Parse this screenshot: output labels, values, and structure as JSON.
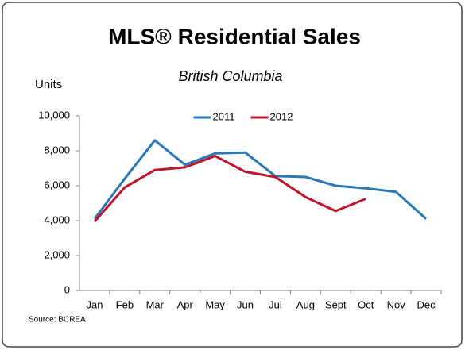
{
  "chart_data": {
    "type": "line",
    "title": "MLS® Residential Sales",
    "subtitle": "British Columbia",
    "y_label": "Units",
    "source": "Source: BCREA",
    "categories": [
      "Jan",
      "Feb",
      "Mar",
      "Apr",
      "May",
      "Jun",
      "Jul",
      "Aug",
      "Sept",
      "Oct",
      "Nov",
      "Dec"
    ],
    "series": [
      {
        "name": "2011",
        "color": "#2b78b8",
        "values": [
          4100,
          6400,
          8600,
          7200,
          7850,
          7900,
          6550,
          6500,
          6000,
          5850,
          5650,
          4100
        ]
      },
      {
        "name": "2012",
        "color": "#c0142a",
        "values": [
          3950,
          5900,
          6900,
          7050,
          7700,
          6800,
          6500,
          5350,
          4550,
          5250,
          null,
          null
        ]
      }
    ],
    "ylim": [
      0,
      10000
    ],
    "yticks": [
      0,
      {
        "value": 2000,
        "label": "2,000"
      },
      {
        "value": 4000,
        "label": "4,000"
      },
      {
        "value": 6000,
        "label": "6,000"
      },
      {
        "value": 8000,
        "label": "8,000"
      },
      {
        "value": 10000,
        "label": "10,000"
      }
    ],
    "legend": "top",
    "grid": false
  }
}
